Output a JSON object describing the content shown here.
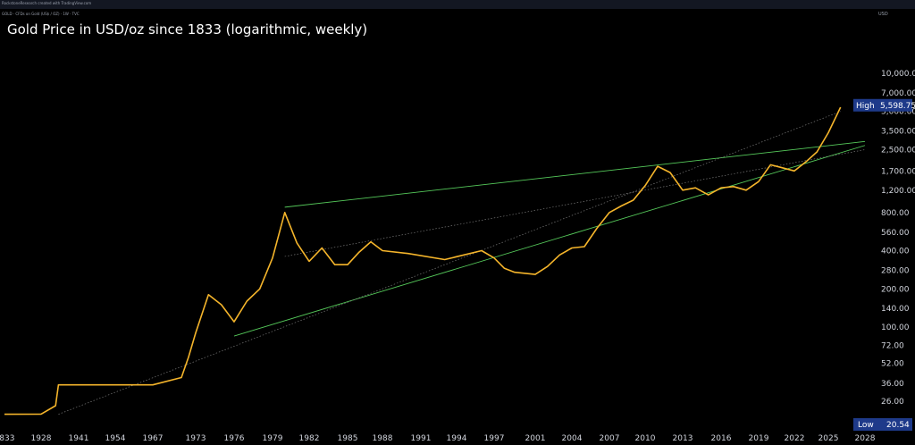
{
  "header": {
    "source_line": "RockstoneResearch created with TradingView.com",
    "symbol_line": "GOLD · CFDs on Gold (US$ / OZ) · 1W · TVC",
    "currency": "USD"
  },
  "markers": {
    "high_label": "High",
    "high_value": "5,598.75",
    "low_label": "Low",
    "low_value": "20.54",
    "high_color": "#1e3a8a",
    "low_color": "#1e3a8a"
  },
  "colors": {
    "price": "#f5b52b",
    "trend": "#55c95a",
    "dotted": "#8a8a8a",
    "background": "#000000"
  },
  "chart_data": {
    "type": "line",
    "title": "Gold Price in USD/oz since 1833 (logarithmic, weekly)",
    "y_scale": "log",
    "y_ticks": [
      "10,000.00",
      "7,000.00",
      "5,000.00",
      "3,500.00",
      "2,500.00",
      "1,700.00",
      "1,200.00",
      "800.00",
      "560.00",
      "400.00",
      "280.00",
      "200.00",
      "140.00",
      "100.00",
      "72.00",
      "52.00",
      "36.00",
      "26.00"
    ],
    "x_ticks": [
      "1833",
      "1928",
      "1941",
      "1954",
      "1967",
      "1973",
      "1976",
      "1979",
      "1982",
      "1985",
      "1988",
      "1991",
      "1994",
      "1997",
      "2001",
      "2004",
      "2007",
      "2010",
      "2013",
      "2016",
      "2019",
      "2022",
      "2025",
      "2028"
    ],
    "series": [
      {
        "x": [
          "1833",
          "1928",
          "1933",
          "1934",
          "1941",
          "1954",
          "1967",
          "1971",
          "1972",
          "1973",
          "1974",
          "1975",
          "1976",
          "1977",
          "1978",
          "1979",
          "1980",
          "1981",
          "1982",
          "1983",
          "1984",
          "1985",
          "1986",
          "1987",
          "1988",
          "1990",
          "1993",
          "1996",
          "1997",
          "1998",
          "1999",
          "2001",
          "2002",
          "2003",
          "2004",
          "2005",
          "2006",
          "2007",
          "2008",
          "2009",
          "2010",
          "2011",
          "2012",
          "2013",
          "2014",
          "2015",
          "2016",
          "2017",
          "2018",
          "2019",
          "2020",
          "2021",
          "2022",
          "2023",
          "2024",
          "2025",
          "2026"
        ],
        "values": [
          20.54,
          20.6,
          24,
          35,
          35,
          35,
          35,
          40,
          58,
          90,
          180,
          150,
          110,
          160,
          200,
          350,
          800,
          460,
          330,
          420,
          310,
          310,
          390,
          470,
          400,
          380,
          340,
          400,
          350,
          290,
          270,
          260,
          300,
          370,
          420,
          430,
          600,
          800,
          900,
          1000,
          1300,
          1850,
          1650,
          1200,
          1250,
          1100,
          1250,
          1280,
          1200,
          1400,
          1900,
          1800,
          1700,
          2000,
          2400,
          3400,
          5400
        ]
      }
    ],
    "trendlines": [
      {
        "x": [
          "1980",
          "2028"
        ],
        "values": [
          880,
          2900
        ]
      },
      {
        "x": [
          "1976",
          "2028"
        ],
        "values": [
          85,
          2700
        ]
      },
      {
        "x": [
          "1980",
          "2028"
        ],
        "values": [
          360,
          2500
        ]
      },
      {
        "x": [
          "1934",
          "2026"
        ],
        "values": [
          20.54,
          5000
        ]
      }
    ]
  }
}
